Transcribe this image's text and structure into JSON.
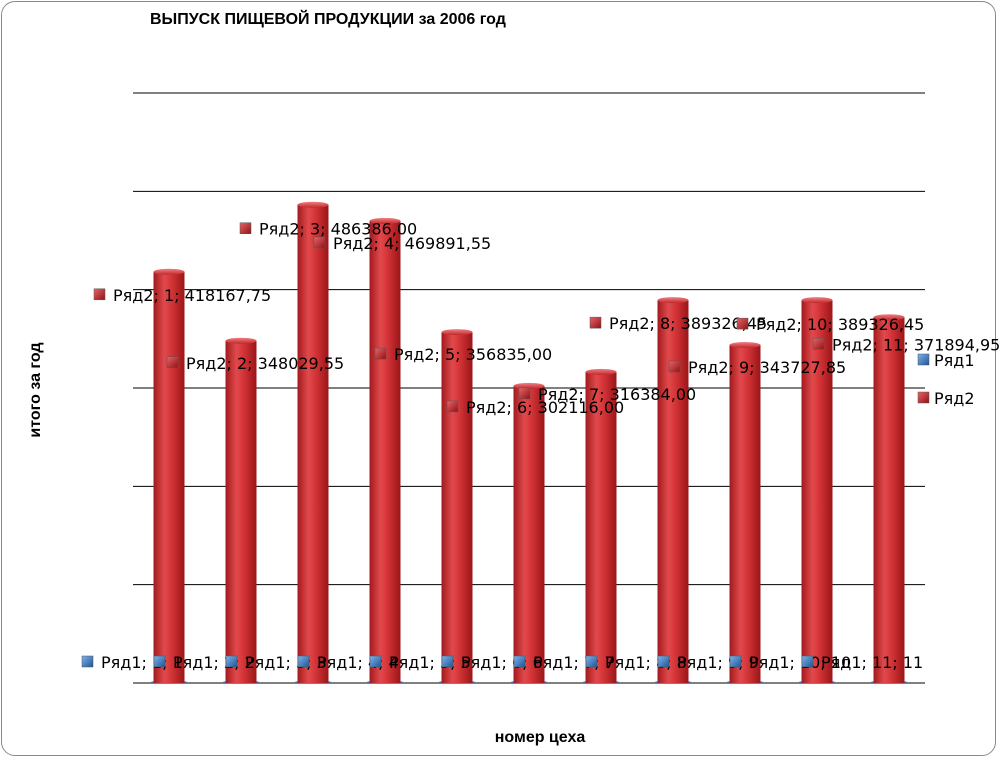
{
  "chart_data": {
    "type": "bar",
    "title": "ВЫПУСК ПИЩЕВОЙ ПРОДУКЦИИ за 2006 год",
    "xlabel": "номер цеха",
    "ylabel": "итого за год",
    "categories": [
      "1",
      "2",
      "3",
      "4",
      "5",
      "6",
      "7",
      "8",
      "9",
      "10",
      "11"
    ],
    "ylim": [
      0,
      600000
    ],
    "grid": true,
    "legend_position": "right",
    "series": [
      {
        "name": "Ряд1",
        "color": "#2e6fb8",
        "values": [
          1,
          2,
          3,
          4,
          5,
          6,
          7,
          8,
          9,
          10,
          11
        ],
        "data_labels": [
          "Ряд1; 1; 1",
          "Ряд1; 2; 2",
          "Ряд1; 3; 3",
          "Ряд1; 4; 4",
          "Ряд1; 5; 5",
          "Ряд1; 6; 6",
          "Ряд1; 7; 7",
          "Ряд1; 8; 8",
          "Ряд1; 9; 9",
          "Ряд1; 10; 10",
          "Ряд1; 11; 11"
        ]
      },
      {
        "name": "Ряд2",
        "color": "#c0282b",
        "values": [
          418167.75,
          348029.55,
          486386.0,
          469891.55,
          356835.0,
          302116.0,
          316384.0,
          389326.45,
          343727.85,
          389326.45,
          371894.95
        ],
        "data_labels": [
          "Ряд2; 1; 418167,75",
          "Ряд2; 2; 348029,55",
          "Ряд2; 3; 486386,00",
          "Ряд2; 4; 469891,55",
          "Ряд2; 5; 356835,00",
          "Ряд2; 6; 302116,00",
          "Ряд2; 7; 316384,00",
          "Ряд2; 8; 389326,45",
          "Ряд2; 9; 343727,85",
          "Ряд2; 10; 389326,45",
          "Ряд2; 11; 371894,95"
        ]
      }
    ]
  }
}
